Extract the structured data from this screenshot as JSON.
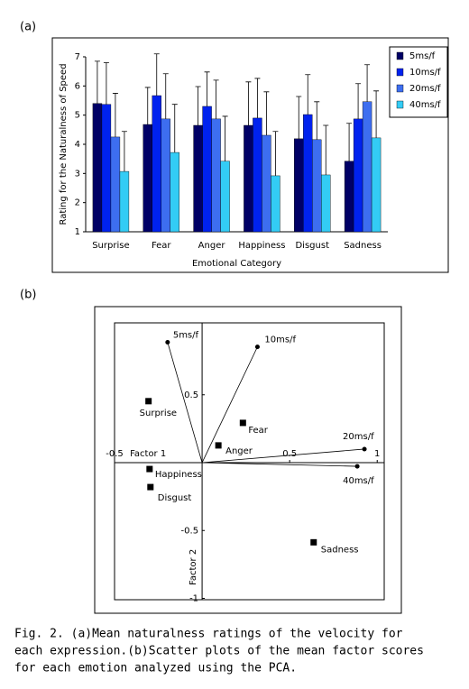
{
  "caption": [
    "Fig. 2.  (a)Mean naturalness ratings of the velocity for",
    "each expression.(b)Scatter plots of the mean factor scores",
    "for each emotion analyzed using the PCA."
  ],
  "chart_data": [
    {
      "type": "bar",
      "panel_label": "(a)",
      "x_label": "Emotional Category",
      "y_label": "Rating for the Naturalness of Speed",
      "categories": [
        "Surprise",
        "Fear",
        "Anger",
        "Happiness",
        "Disgust",
        "Sadness"
      ],
      "series": [
        {
          "name": "5ms/f",
          "color": "#000066",
          "values": [
            5.4,
            4.68,
            4.65,
            4.65,
            4.19,
            3.42
          ],
          "errors": [
            1.45,
            1.27,
            1.33,
            1.49,
            1.45,
            1.3
          ]
        },
        {
          "name": "10ms/f",
          "color": "#0022ee",
          "values": [
            5.37,
            5.67,
            5.3,
            4.9,
            5.02,
            4.87
          ],
          "errors": [
            1.43,
            1.43,
            1.18,
            1.36,
            1.37,
            1.21
          ]
        },
        {
          "name": "20ms/f",
          "color": "#3d6ef0",
          "values": [
            4.25,
            4.87,
            4.87,
            4.31,
            4.16,
            5.46
          ],
          "errors": [
            1.5,
            1.55,
            1.33,
            1.49,
            1.3,
            1.27
          ]
        },
        {
          "name": "40ms/f",
          "color": "#33ccf5",
          "values": [
            3.07,
            3.72,
            3.42,
            2.92,
            2.95,
            4.22
          ],
          "errors": [
            1.37,
            1.65,
            1.54,
            1.52,
            1.7,
            1.61
          ]
        }
      ],
      "ylim": [
        1,
        7
      ],
      "yticks": [
        1,
        2,
        3,
        4,
        5,
        6,
        7
      ],
      "legend": "right"
    },
    {
      "type": "scatter",
      "panel_label": "(b)",
      "x_label": "Factor 1",
      "y_label": "Factor 2",
      "points": {
        "labels": [
          "Surprise",
          "Fear",
          "Anger",
          "Happiness",
          "Disgust",
          "Sadness"
        ],
        "x": [
          -0.306,
          0.233,
          0.093,
          -0.3,
          -0.295,
          0.637
        ],
        "y": [
          0.453,
          0.293,
          0.127,
          -0.047,
          -0.18,
          -0.587
        ]
      },
      "loadings": {
        "labels": [
          "5ms/f",
          "10ms/f",
          "20ms/f",
          "40ms/f"
        ],
        "x": [
          -0.197,
          0.316,
          0.927,
          0.886
        ],
        "y": [
          0.887,
          0.853,
          0.1,
          -0.027
        ]
      },
      "xlim": [
        -0.5,
        1.04
      ],
      "ylim": [
        -1.01,
        1.03
      ],
      "xticks": [
        -0.5,
        0.5,
        1
      ],
      "yticks": [
        0.5,
        -0.5,
        -1
      ]
    }
  ]
}
